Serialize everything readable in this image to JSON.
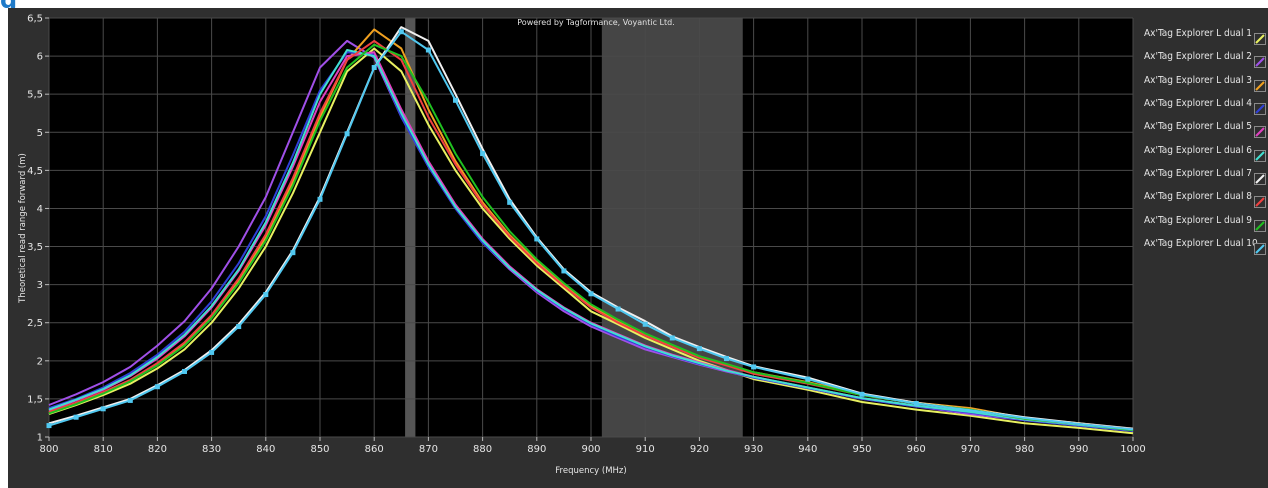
{
  "page": {
    "heading": "g"
  },
  "credit": "Powered by Tagformance, Voyantic Ltd.",
  "chart_data": {
    "type": "line",
    "xlabel": "Frequency (MHz)",
    "ylabel": "Theoretical read range forward (m)",
    "xlim": [
      800,
      1000
    ],
    "ylim": [
      1,
      6.5
    ],
    "xticks": [
      800,
      810,
      820,
      830,
      840,
      850,
      860,
      870,
      880,
      890,
      900,
      910,
      920,
      930,
      940,
      950,
      960,
      970,
      980,
      990,
      1000
    ],
    "yticks": [
      1,
      1.5,
      2,
      2.5,
      3,
      3.5,
      4,
      4.5,
      5,
      5.5,
      6,
      6.5
    ],
    "ytick_labels": [
      "1",
      "1,5",
      "2",
      "2,5",
      "3",
      "3,5",
      "4",
      "4,5",
      "5",
      "5,5",
      "6",
      "6,5"
    ],
    "grid": true,
    "legend_position": "right",
    "shaded_bands": [
      {
        "x": [
          865.7,
          867.6
        ],
        "color": "#555555"
      },
      {
        "x": [
          902,
          928
        ],
        "color": "#454545"
      }
    ],
    "x": [
      800,
      805,
      810,
      815,
      820,
      825,
      830,
      835,
      840,
      845,
      850,
      855,
      860,
      865,
      870,
      875,
      880,
      885,
      890,
      895,
      900,
      905,
      910,
      915,
      920,
      925,
      930,
      940,
      950,
      960,
      970,
      980,
      990,
      1000
    ],
    "series": [
      {
        "name": "Ax'Tag Explorer L dual 1",
        "color": "#e8f060",
        "markers": false,
        "values": [
          1.3,
          1.42,
          1.55,
          1.7,
          1.9,
          2.15,
          2.5,
          2.95,
          3.5,
          4.2,
          5.0,
          5.8,
          6.1,
          5.8,
          5.1,
          4.5,
          4.0,
          3.6,
          3.25,
          2.95,
          2.65,
          2.48,
          2.3,
          2.15,
          2.0,
          1.88,
          1.76,
          1.62,
          1.46,
          1.36,
          1.28,
          1.18,
          1.12,
          1.05
        ]
      },
      {
        "name": "Ax'Tag Explorer L dual 2",
        "color": "#a050e8",
        "markers": false,
        "values": [
          1.42,
          1.56,
          1.72,
          1.92,
          2.2,
          2.52,
          2.95,
          3.5,
          4.15,
          5.0,
          5.85,
          6.2,
          5.98,
          5.2,
          4.55,
          4.0,
          3.55,
          3.2,
          2.9,
          2.65,
          2.45,
          2.3,
          2.15,
          2.05,
          1.95,
          1.86,
          1.78,
          1.64,
          1.5,
          1.4,
          1.3,
          1.22,
          1.15,
          1.08
        ]
      },
      {
        "name": "Ax'Tag Explorer L dual 3",
        "color": "#f0a020",
        "markers": false,
        "values": [
          1.32,
          1.44,
          1.58,
          1.74,
          1.95,
          2.22,
          2.58,
          3.05,
          3.62,
          4.35,
          5.2,
          5.95,
          6.35,
          6.1,
          5.3,
          4.62,
          4.08,
          3.65,
          3.3,
          3.0,
          2.72,
          2.52,
          2.35,
          2.2,
          2.05,
          1.95,
          1.85,
          1.72,
          1.56,
          1.45,
          1.38,
          1.25,
          1.18,
          1.1
        ]
      },
      {
        "name": "Ax'Tag Explorer L dual 4",
        "color": "#3040d8",
        "markers": false,
        "values": [
          1.38,
          1.5,
          1.65,
          1.84,
          2.08,
          2.38,
          2.78,
          3.28,
          3.9,
          4.7,
          5.55,
          6.05,
          6.02,
          5.2,
          4.55,
          4.0,
          3.55,
          3.22,
          2.92,
          2.68,
          2.48,
          2.32,
          2.18,
          2.06,
          1.96,
          1.87,
          1.78,
          1.64,
          1.5,
          1.4,
          1.32,
          1.22,
          1.15,
          1.08
        ]
      },
      {
        "name": "Ax'Tag Explorer L dual 5",
        "color": "#e040c0",
        "markers": false,
        "values": [
          1.35,
          1.48,
          1.62,
          1.8,
          2.03,
          2.32,
          2.7,
          3.18,
          3.78,
          4.55,
          5.4,
          6.0,
          6.05,
          5.3,
          4.62,
          4.05,
          3.6,
          3.24,
          2.94,
          2.7,
          2.5,
          2.35,
          2.2,
          2.08,
          1.98,
          1.88,
          1.79,
          1.65,
          1.51,
          1.41,
          1.33,
          1.23,
          1.16,
          1.09
        ]
      },
      {
        "name": "Ax'Tag Explorer L dual 6",
        "color": "#40e0d0",
        "markers": false,
        "values": [
          1.36,
          1.49,
          1.63,
          1.81,
          2.05,
          2.34,
          2.72,
          3.2,
          3.82,
          4.6,
          5.5,
          6.08,
          6.0,
          5.25,
          4.58,
          4.02,
          3.58,
          3.22,
          2.93,
          2.69,
          2.49,
          2.34,
          2.19,
          2.07,
          1.97,
          1.87,
          1.79,
          1.65,
          1.51,
          1.41,
          1.33,
          1.23,
          1.16,
          1.09
        ]
      },
      {
        "name": "Ax'Tag Explorer L dual 7",
        "color": "#f0f0f0",
        "markers": false,
        "values": [
          1.18,
          1.28,
          1.39,
          1.5,
          1.68,
          1.88,
          2.14,
          2.48,
          2.9,
          3.45,
          4.15,
          5.0,
          5.85,
          6.38,
          6.2,
          5.5,
          4.78,
          4.12,
          3.62,
          3.2,
          2.9,
          2.7,
          2.52,
          2.32,
          2.18,
          2.05,
          1.93,
          1.78,
          1.57,
          1.45,
          1.36,
          1.26,
          1.18,
          1.11
        ]
      },
      {
        "name": "Ax'Tag Explorer L dual 8",
        "color": "#f04040",
        "markers": false,
        "values": [
          1.33,
          1.45,
          1.59,
          1.75,
          1.97,
          2.24,
          2.6,
          3.08,
          3.66,
          4.4,
          5.25,
          5.95,
          6.2,
          5.95,
          5.2,
          4.58,
          4.05,
          3.63,
          3.28,
          2.98,
          2.7,
          2.5,
          2.33,
          2.18,
          2.04,
          1.94,
          1.83,
          1.7,
          1.55,
          1.44,
          1.36,
          1.24,
          1.17,
          1.1
        ]
      },
      {
        "name": "Ax'Tag Explorer L dual 9",
        "color": "#20c020",
        "markers": false,
        "values": [
          1.31,
          1.43,
          1.57,
          1.73,
          1.94,
          2.2,
          2.56,
          3.02,
          3.58,
          4.3,
          5.15,
          5.85,
          6.15,
          6.0,
          5.4,
          4.72,
          4.15,
          3.7,
          3.33,
          3.02,
          2.74,
          2.54,
          2.36,
          2.21,
          2.06,
          1.96,
          1.85,
          1.71,
          1.55,
          1.44,
          1.36,
          1.24,
          1.17,
          1.09
        ]
      },
      {
        "name": "Ax'Tag Explorer L dual 10",
        "color": "#50c8f0",
        "markers": true,
        "values": [
          1.15,
          1.26,
          1.37,
          1.48,
          1.66,
          1.86,
          2.11,
          2.45,
          2.87,
          3.42,
          4.12,
          4.98,
          5.85,
          6.32,
          6.08,
          5.42,
          4.72,
          4.08,
          3.6,
          3.18,
          2.88,
          2.68,
          2.48,
          2.3,
          2.16,
          2.03,
          1.92,
          1.76,
          1.56,
          1.44,
          1.35,
          1.25,
          1.17,
          1.1
        ]
      }
    ]
  }
}
